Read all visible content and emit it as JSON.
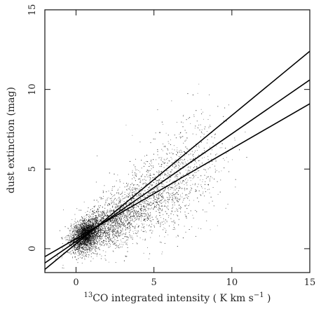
{
  "chart_data": {
    "type": "scatter",
    "title": "",
    "xlabel_sup": "13",
    "xlabel_main": "CO integrated intensity ( K km s",
    "xlabel_exp": "−1",
    "xlabel_close": " )",
    "ylabel": "dust extinction (mag)",
    "xlim": [
      -2,
      15
    ],
    "ylim": [
      -1.5,
      15
    ],
    "x_ticks": [
      0,
      5,
      10,
      15
    ],
    "x_tick_labels": [
      "0",
      "5",
      "10",
      "15"
    ],
    "y_ticks": [
      0,
      5,
      10,
      15
    ],
    "y_tick_labels": [
      "0",
      "5",
      "10",
      "15"
    ],
    "grid": false,
    "series": [
      {
        "kind": "points",
        "description_points": "dense cloud of small points; core near x 0–2, y 0–2; spreading to x ~9, y ~10",
        "clusters": [
          {
            "x_center": 0.6,
            "x_spread": 0.45,
            "y_center": 0.9,
            "y_spread": 0.45,
            "count": 2200
          },
          {
            "x_center": 2.0,
            "x_spread": 1.2,
            "y_center": 1.5,
            "y_spread": 0.7,
            "count": 1400
          },
          {
            "x_center": 4.5,
            "x_spread": 1.6,
            "y_center": 3.0,
            "y_spread": 1.2,
            "count": 1100
          },
          {
            "x_center": 7.0,
            "x_spread": 1.4,
            "y_center": 5.0,
            "y_spread": 1.8,
            "count": 500
          }
        ]
      },
      {
        "kind": "line",
        "x": [
          -2,
          15
        ],
        "y": [
          -1.3,
          12.4
        ]
      },
      {
        "kind": "line",
        "x": [
          -2,
          15
        ],
        "y": [
          -0.9,
          10.6
        ]
      },
      {
        "kind": "line",
        "x": [
          -2,
          15
        ],
        "y": [
          -0.5,
          9.1
        ]
      }
    ]
  }
}
